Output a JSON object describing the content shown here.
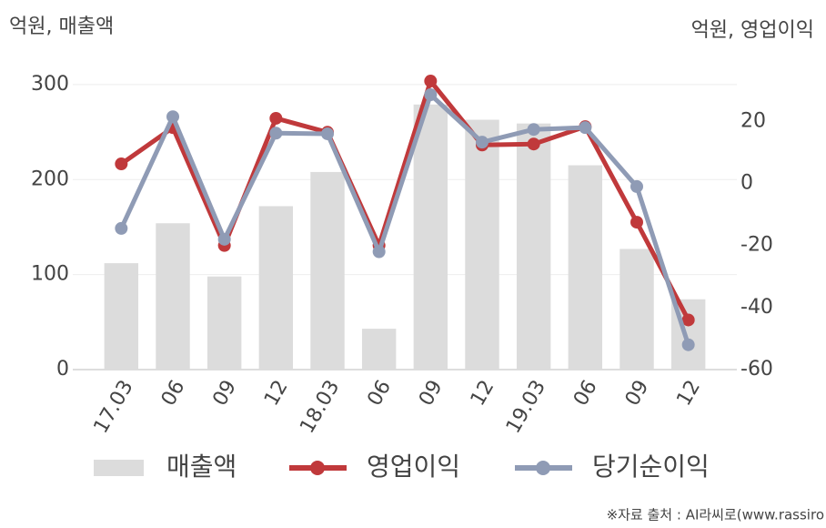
{
  "chart_data": {
    "type": "combo",
    "y_label": "억원, 매출액",
    "y2_label": "억원, 영업이익",
    "source": "※자료 출처 : AI라씨로(www.rassiro",
    "categories": [
      "17.03",
      "06",
      "09",
      "12",
      "18.03",
      "06",
      "09",
      "12",
      "19.03",
      "06",
      "09",
      "12"
    ],
    "series": [
      {
        "name": "매출액",
        "type": "bar",
        "color": "#dcdcdc",
        "values": [
          112,
          154,
          98,
          172,
          208,
          43,
          279,
          263,
          259,
          215,
          127,
          74
        ]
      },
      {
        "name": "영업이익",
        "type": "line",
        "axis": "y2",
        "color": "#c0393b",
        "values": [
          6.3,
          18,
          -20,
          21,
          16.5,
          -20,
          33,
          12.4,
          12.7,
          18.3,
          -12.5,
          -44
        ]
      },
      {
        "name": "당기순이익",
        "type": "line",
        "axis": "y2",
        "color": "#8f9bb5",
        "values": [
          -14.5,
          21.5,
          -18,
          16.2,
          16,
          -22,
          28.6,
          13.3,
          17.4,
          18,
          -1,
          -52
        ]
      }
    ],
    "ylim": [
      0,
      320
    ],
    "yticks": [
      0,
      100,
      200,
      300
    ],
    "y2lim": [
      -60,
      38
    ],
    "y2ticks": [
      -60,
      -40,
      -20,
      0,
      20
    ],
    "grid": true
  }
}
